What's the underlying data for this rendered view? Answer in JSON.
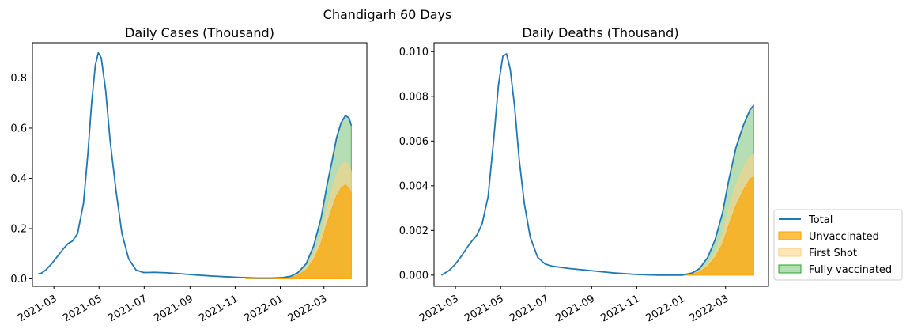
{
  "figure": {
    "suptitle": "Chandigarh 60 Days"
  },
  "colors": {
    "total": "#1f77b4",
    "unvaccinated": "#ffa500",
    "first_shot": "#ffd27f",
    "fully_vaccinated": "#2ca02c"
  },
  "legend": {
    "items": [
      {
        "label": "Total",
        "kind": "line",
        "color_key": "total"
      },
      {
        "label": "Unvaccinated",
        "kind": "patch",
        "color_key": "unvaccinated"
      },
      {
        "label": "First Shot",
        "kind": "patch",
        "color_key": "first_shot"
      },
      {
        "label": "Fully vaccinated",
        "kind": "patch",
        "color_key": "fully_vaccinated"
      }
    ]
  },
  "chart_data": [
    {
      "type": "area",
      "title": "Daily Cases (Thousand)",
      "xlabel": "",
      "ylabel": "",
      "xlim": [
        "2021-01-31",
        "2022-04-28"
      ],
      "ylim": [
        -0.03,
        0.94
      ],
      "x_ticks": [
        "2021-03",
        "2021-05",
        "2021-07",
        "2021-09",
        "2021-11",
        "2022-01",
        "2022-03"
      ],
      "y_ticks": [
        "0.0",
        "0.2",
        "0.4",
        "0.6",
        "0.8"
      ],
      "y_tick_values": [
        0.0,
        0.2,
        0.4,
        0.6,
        0.8
      ],
      "series": [
        {
          "name": "Total",
          "kind": "line",
          "x": [
            "2021-02-08",
            "2021-02-12",
            "2021-02-18",
            "2021-02-26",
            "2021-03-06",
            "2021-03-14",
            "2021-03-20",
            "2021-03-26",
            "2021-04-02",
            "2021-04-10",
            "2021-04-16",
            "2021-04-21",
            "2021-04-26",
            "2021-04-30",
            "2021-05-04",
            "2021-05-10",
            "2021-05-16",
            "2021-05-24",
            "2021-06-01",
            "2021-06-10",
            "2021-06-20",
            "2021-06-30",
            "2021-07-06",
            "2021-07-15",
            "2021-08-01",
            "2021-08-20",
            "2021-09-10",
            "2021-10-01",
            "2021-10-20",
            "2021-11-10",
            "2021-11-30",
            "2021-12-20",
            "2022-01-05",
            "2022-01-15",
            "2022-01-25",
            "2022-02-05",
            "2022-02-15",
            "2022-02-25",
            "2022-03-05",
            "2022-03-12",
            "2022-03-18",
            "2022-03-24",
            "2022-03-30",
            "2022-04-04",
            "2022-04-07"
          ],
          "y": [
            0.02,
            0.022,
            0.035,
            0.06,
            0.09,
            0.12,
            0.14,
            0.15,
            0.18,
            0.3,
            0.5,
            0.7,
            0.85,
            0.9,
            0.88,
            0.75,
            0.55,
            0.35,
            0.18,
            0.08,
            0.035,
            0.025,
            0.025,
            0.026,
            0.024,
            0.02,
            0.015,
            0.011,
            0.008,
            0.005,
            0.003,
            0.003,
            0.005,
            0.01,
            0.025,
            0.06,
            0.13,
            0.24,
            0.37,
            0.47,
            0.56,
            0.62,
            0.65,
            0.64,
            0.61
          ]
        },
        {
          "name": "Unvaccinated",
          "kind": "area",
          "stack": 1,
          "x": [
            "2021-11-15",
            "2021-12-10",
            "2022-01-01",
            "2022-01-15",
            "2022-01-25",
            "2022-02-05",
            "2022-02-15",
            "2022-02-25",
            "2022-03-05",
            "2022-03-12",
            "2022-03-18",
            "2022-03-24",
            "2022-03-30",
            "2022-04-04",
            "2022-04-07"
          ],
          "y": [
            0.0,
            0.0,
            0.002,
            0.006,
            0.015,
            0.035,
            0.075,
            0.14,
            0.22,
            0.28,
            0.33,
            0.36,
            0.375,
            0.36,
            0.34
          ]
        },
        {
          "name": "First Shot",
          "kind": "area",
          "stack": 2,
          "x": [
            "2021-11-15",
            "2021-12-10",
            "2022-01-01",
            "2022-01-15",
            "2022-01-25",
            "2022-02-05",
            "2022-02-15",
            "2022-02-25",
            "2022-03-05",
            "2022-03-12",
            "2022-03-18",
            "2022-03-24",
            "2022-03-30",
            "2022-04-04",
            "2022-04-07"
          ],
          "y": [
            0.0,
            0.0,
            0.003,
            0.008,
            0.019,
            0.045,
            0.095,
            0.175,
            0.275,
            0.35,
            0.41,
            0.45,
            0.465,
            0.45,
            0.425
          ]
        },
        {
          "name": "Fully vaccinated",
          "kind": "area",
          "stack": 3,
          "x": [
            "2021-11-15",
            "2021-12-10",
            "2022-01-01",
            "2022-01-15",
            "2022-01-25",
            "2022-02-05",
            "2022-02-15",
            "2022-02-25",
            "2022-03-05",
            "2022-03-12",
            "2022-03-18",
            "2022-03-24",
            "2022-03-30",
            "2022-04-04",
            "2022-04-07"
          ],
          "y": [
            0.0,
            0.0,
            0.005,
            0.01,
            0.025,
            0.06,
            0.13,
            0.24,
            0.37,
            0.47,
            0.56,
            0.62,
            0.65,
            0.64,
            0.61
          ]
        }
      ]
    },
    {
      "type": "area",
      "title": "Daily Deaths (Thousand)",
      "xlabel": "",
      "ylabel": "",
      "xlim": [
        "2021-01-31",
        "2022-04-28"
      ],
      "ylim": [
        -0.0005,
        0.0104
      ],
      "x_ticks": [
        "2021-03",
        "2021-05",
        "2021-07",
        "2021-09",
        "2021-11",
        "2022-01",
        "2022-03"
      ],
      "y_ticks": [
        "0.000",
        "0.002",
        "0.004",
        "0.006",
        "0.008",
        "0.010"
      ],
      "y_tick_values": [
        0.0,
        0.002,
        0.004,
        0.006,
        0.008,
        0.01
      ],
      "series": [
        {
          "name": "Total",
          "kind": "line",
          "x": [
            "2021-02-10",
            "2021-02-20",
            "2021-03-01",
            "2021-03-10",
            "2021-03-20",
            "2021-03-30",
            "2021-04-06",
            "2021-04-14",
            "2021-04-22",
            "2021-04-28",
            "2021-05-04",
            "2021-05-09",
            "2021-05-14",
            "2021-05-20",
            "2021-05-26",
            "2021-06-02",
            "2021-06-10",
            "2021-06-20",
            "2021-06-30",
            "2021-07-10",
            "2021-08-01",
            "2021-09-01",
            "2021-10-01",
            "2021-11-01",
            "2021-12-01",
            "2022-01-01",
            "2022-01-15",
            "2022-01-25",
            "2022-02-05",
            "2022-02-15",
            "2022-02-25",
            "2022-03-05",
            "2022-03-15",
            "2022-03-25",
            "2022-04-03",
            "2022-04-08"
          ],
          "y": [
            0.0,
            0.0002,
            0.0005,
            0.0009,
            0.0014,
            0.0018,
            0.0023,
            0.0035,
            0.0062,
            0.0085,
            0.0098,
            0.0099,
            0.0092,
            0.0075,
            0.0052,
            0.0032,
            0.0017,
            0.0008,
            0.0005,
            0.0004,
            0.0003,
            0.0002,
            0.0001,
            3e-05,
            0.0,
            0.0,
            0.0001,
            0.0003,
            0.0008,
            0.0016,
            0.0028,
            0.0042,
            0.0057,
            0.0067,
            0.0074,
            0.0076
          ]
        },
        {
          "name": "Unvaccinated",
          "kind": "area",
          "stack": 1,
          "x": [
            "2021-11-15",
            "2021-12-15",
            "2022-01-01",
            "2022-01-15",
            "2022-01-25",
            "2022-02-05",
            "2022-02-15",
            "2022-02-25",
            "2022-03-05",
            "2022-03-15",
            "2022-03-25",
            "2022-04-03",
            "2022-04-08"
          ],
          "y": [
            0.0,
            0.0,
            0.0,
            5e-05,
            0.00015,
            0.0004,
            0.0008,
            0.0014,
            0.0022,
            0.0031,
            0.0038,
            0.0043,
            0.0044
          ]
        },
        {
          "name": "First Shot",
          "kind": "area",
          "stack": 2,
          "x": [
            "2021-11-15",
            "2021-12-15",
            "2022-01-01",
            "2022-01-15",
            "2022-01-25",
            "2022-02-05",
            "2022-02-15",
            "2022-02-25",
            "2022-03-05",
            "2022-03-15",
            "2022-03-25",
            "2022-04-03",
            "2022-04-08"
          ],
          "y": [
            0.0,
            0.0,
            0.0,
            7e-05,
            0.0002,
            0.0005,
            0.001,
            0.0018,
            0.0029,
            0.004,
            0.0048,
            0.0053,
            0.0054
          ]
        },
        {
          "name": "Fully vaccinated",
          "kind": "area",
          "stack": 3,
          "x": [
            "2021-11-15",
            "2021-12-15",
            "2022-01-01",
            "2022-01-15",
            "2022-01-25",
            "2022-02-05",
            "2022-02-15",
            "2022-02-25",
            "2022-03-05",
            "2022-03-15",
            "2022-03-25",
            "2022-04-03",
            "2022-04-08"
          ],
          "y": [
            0.0,
            0.0,
            0.0,
            0.0001,
            0.0003,
            0.0008,
            0.0016,
            0.0028,
            0.0042,
            0.0057,
            0.0067,
            0.0074,
            0.0076
          ]
        }
      ]
    }
  ]
}
